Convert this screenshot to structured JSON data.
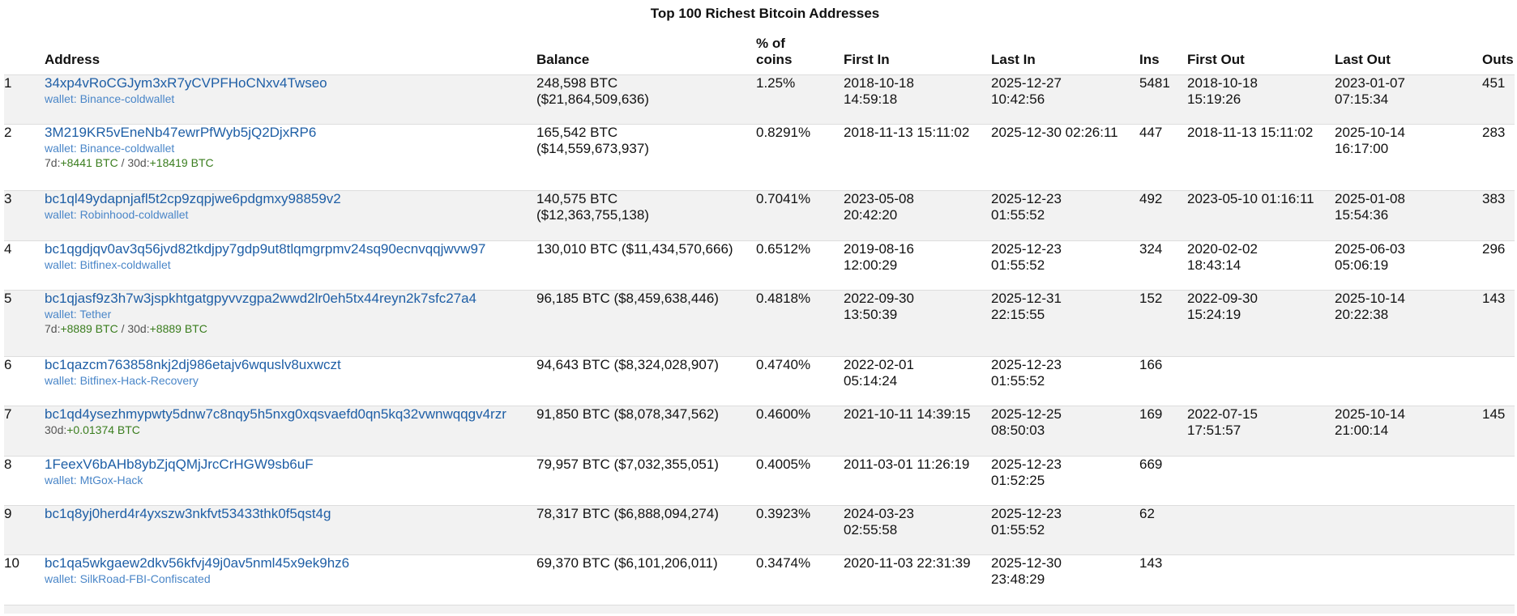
{
  "page": {
    "title": "Top 100 Richest Bitcoin Addresses"
  },
  "columns": {
    "rank": "",
    "address": "Address",
    "balance": "Balance",
    "pct_line1": "% of",
    "pct_line2": "coins",
    "first_in": "First In",
    "last_in": "Last In",
    "ins": "Ins",
    "first_out": "First Out",
    "last_out": "Last Out",
    "outs": "Outs"
  },
  "rows": [
    {
      "rank": "1",
      "address": "34xp4vRoCGJym3xR7yCVPFHoCNxv4Twseo",
      "wallet": "wallet: Binance-coldwallet",
      "balance_btc": "248,598 BTC",
      "balance_usd": "($21,864,509,636)",
      "pct": "1.25%",
      "first_in": [
        "2018-10-18",
        "14:59:18"
      ],
      "last_in": [
        "2025-12-27",
        "10:42:56"
      ],
      "ins": "5481",
      "first_out": [
        "2018-10-18",
        "15:19:26"
      ],
      "last_out": [
        "2023-01-07",
        "07:15:34"
      ],
      "outs": "451"
    },
    {
      "rank": "2",
      "address": "3M219KR5vEneNb47ewrPfWyb5jQ2DjxRP6",
      "wallet": "wallet: Binance-coldwallet",
      "delta": {
        "d7_label": "7d:",
        "d7_value": "+8441 BTC",
        "sep": " / ",
        "d30_label": "30d:",
        "d30_value": "+18419 BTC"
      },
      "balance_btc": "165,542 BTC",
      "balance_usd": "($14,559,673,937)",
      "pct": "0.8291%",
      "first_in": [
        "2018-11-13 15:11:02",
        ""
      ],
      "last_in": [
        "2025-12-30 02:26:11",
        ""
      ],
      "ins": "447",
      "first_out": [
        "2018-11-13 15:11:02",
        ""
      ],
      "last_out": [
        "2025-10-14",
        "16:17:00"
      ],
      "outs": "283"
    },
    {
      "rank": "3",
      "address": "bc1ql49ydapnjafl5t2cp9zqpjwe6pdgmxy98859v2",
      "wallet": "wallet: Robinhood-coldwallet",
      "balance_btc": "140,575 BTC",
      "balance_usd": "($12,363,755,138)",
      "pct": "0.7041%",
      "first_in": [
        "2023-05-08",
        "20:42:20"
      ],
      "last_in": [
        "2025-12-23",
        "01:55:52"
      ],
      "ins": "492",
      "first_out": [
        "2023-05-10 01:16:11",
        ""
      ],
      "last_out": [
        "2025-01-08",
        "15:54:36"
      ],
      "outs": "383"
    },
    {
      "rank": "4",
      "address": "bc1qgdjqv0av3q56jvd82tkdjpy7gdp9ut8tlqmgrpmv24sq90ecnvqqjwvw97",
      "wallet": "wallet: Bitfinex-coldwallet",
      "balance_btc": "130,010 BTC ($11,434,570,666)",
      "balance_usd": "",
      "pct": "0.6512%",
      "first_in": [
        "2019-08-16",
        "12:00:29"
      ],
      "last_in": [
        "2025-12-23",
        "01:55:52"
      ],
      "ins": "324",
      "first_out": [
        "2020-02-02",
        "18:43:14"
      ],
      "last_out": [
        "2025-06-03",
        "05:06:19"
      ],
      "outs": "296"
    },
    {
      "rank": "5",
      "address": "bc1qjasf9z3h7w3jspkhtgatgpyvvzgpa2wwd2lr0eh5tx44reyn2k7sfc27a4",
      "wallet": "wallet: Tether",
      "delta": {
        "d7_label": "7d:",
        "d7_value": "+8889 BTC",
        "sep": " / ",
        "d30_label": "30d:",
        "d30_value": "+8889 BTC"
      },
      "balance_btc": "96,185 BTC ($8,459,638,446)",
      "balance_usd": "",
      "pct": "0.4818%",
      "first_in": [
        "2022-09-30",
        "13:50:39"
      ],
      "last_in": [
        "2025-12-31",
        "22:15:55"
      ],
      "ins": "152",
      "first_out": [
        "2022-09-30",
        "15:24:19"
      ],
      "last_out": [
        "2025-10-14",
        "20:22:38"
      ],
      "outs": "143"
    },
    {
      "rank": "6",
      "address": "bc1qazcm763858nkj2dj986etajv6wquslv8uxwczt",
      "wallet": "wallet: Bitfinex-Hack-Recovery",
      "balance_btc": "94,643 BTC ($8,324,028,907)",
      "balance_usd": "",
      "pct": "0.4740%",
      "first_in": [
        "2022-02-01",
        "05:14:24"
      ],
      "last_in": [
        "2025-12-23",
        "01:55:52"
      ],
      "ins": "166",
      "first_out": [
        "",
        ""
      ],
      "last_out": [
        "",
        ""
      ],
      "outs": ""
    },
    {
      "rank": "7",
      "address": "bc1qd4ysezhmypwty5dnw7c8nqy5h5nxg0xqsvaefd0qn5kq32vwnwqqgv4rzr",
      "delta30only": {
        "d30_label": "30d:",
        "d30_value": "+0.01374 BTC"
      },
      "balance_btc": "91,850 BTC ($8,078,347,562)",
      "balance_usd": "",
      "pct": "0.4600%",
      "first_in": [
        "2021-10-11 14:39:15",
        ""
      ],
      "last_in": [
        "2025-12-25",
        "08:50:03"
      ],
      "ins": "169",
      "first_out": [
        "2022-07-15",
        "17:51:57"
      ],
      "last_out": [
        "2025-10-14",
        "21:00:14"
      ],
      "outs": "145"
    },
    {
      "rank": "8",
      "address": "1FeexV6bAHb8ybZjqQMjJrcCrHGW9sb6uF",
      "wallet": "wallet: MtGox-Hack",
      "balance_btc": "79,957 BTC ($7,032,355,051)",
      "balance_usd": "",
      "pct": "0.4005%",
      "first_in": [
        "2011-03-01 11:26:19",
        ""
      ],
      "last_in": [
        "2025-12-23",
        "01:52:25"
      ],
      "ins": "669",
      "first_out": [
        "",
        ""
      ],
      "last_out": [
        "",
        ""
      ],
      "outs": ""
    },
    {
      "rank": "9",
      "address": "bc1q8yj0herd4r4yxszw3nkfvt53433thk0f5qst4g",
      "balance_btc": "78,317 BTC ($6,888,094,274)",
      "balance_usd": "",
      "pct": "0.3923%",
      "first_in": [
        "2024-03-23",
        "02:55:58"
      ],
      "last_in": [
        "2025-12-23",
        "01:55:52"
      ],
      "ins": "62",
      "first_out": [
        "",
        ""
      ],
      "last_out": [
        "",
        ""
      ],
      "outs": ""
    },
    {
      "rank": "10",
      "address": "bc1qa5wkgaew2dkv56kfvj49j0av5nml45x9ek9hz6",
      "wallet": "wallet: SilkRoad-FBI-Confiscated",
      "balance_btc": "69,370 BTC ($6,101,206,011)",
      "balance_usd": "",
      "pct": "0.3474%",
      "first_in": [
        "2020-11-03 22:31:39",
        ""
      ],
      "last_in": [
        "2025-12-30",
        "23:48:29"
      ],
      "ins": "143",
      "first_out": [
        "",
        ""
      ],
      "last_out": [
        "",
        ""
      ],
      "outs": ""
    }
  ],
  "colors": {
    "link": "#1f5fa6",
    "wallet": "#4a86c8",
    "positive_delta": "#3a7d1e",
    "row_alt": "#f2f2f2",
    "border": "#dddddd"
  }
}
